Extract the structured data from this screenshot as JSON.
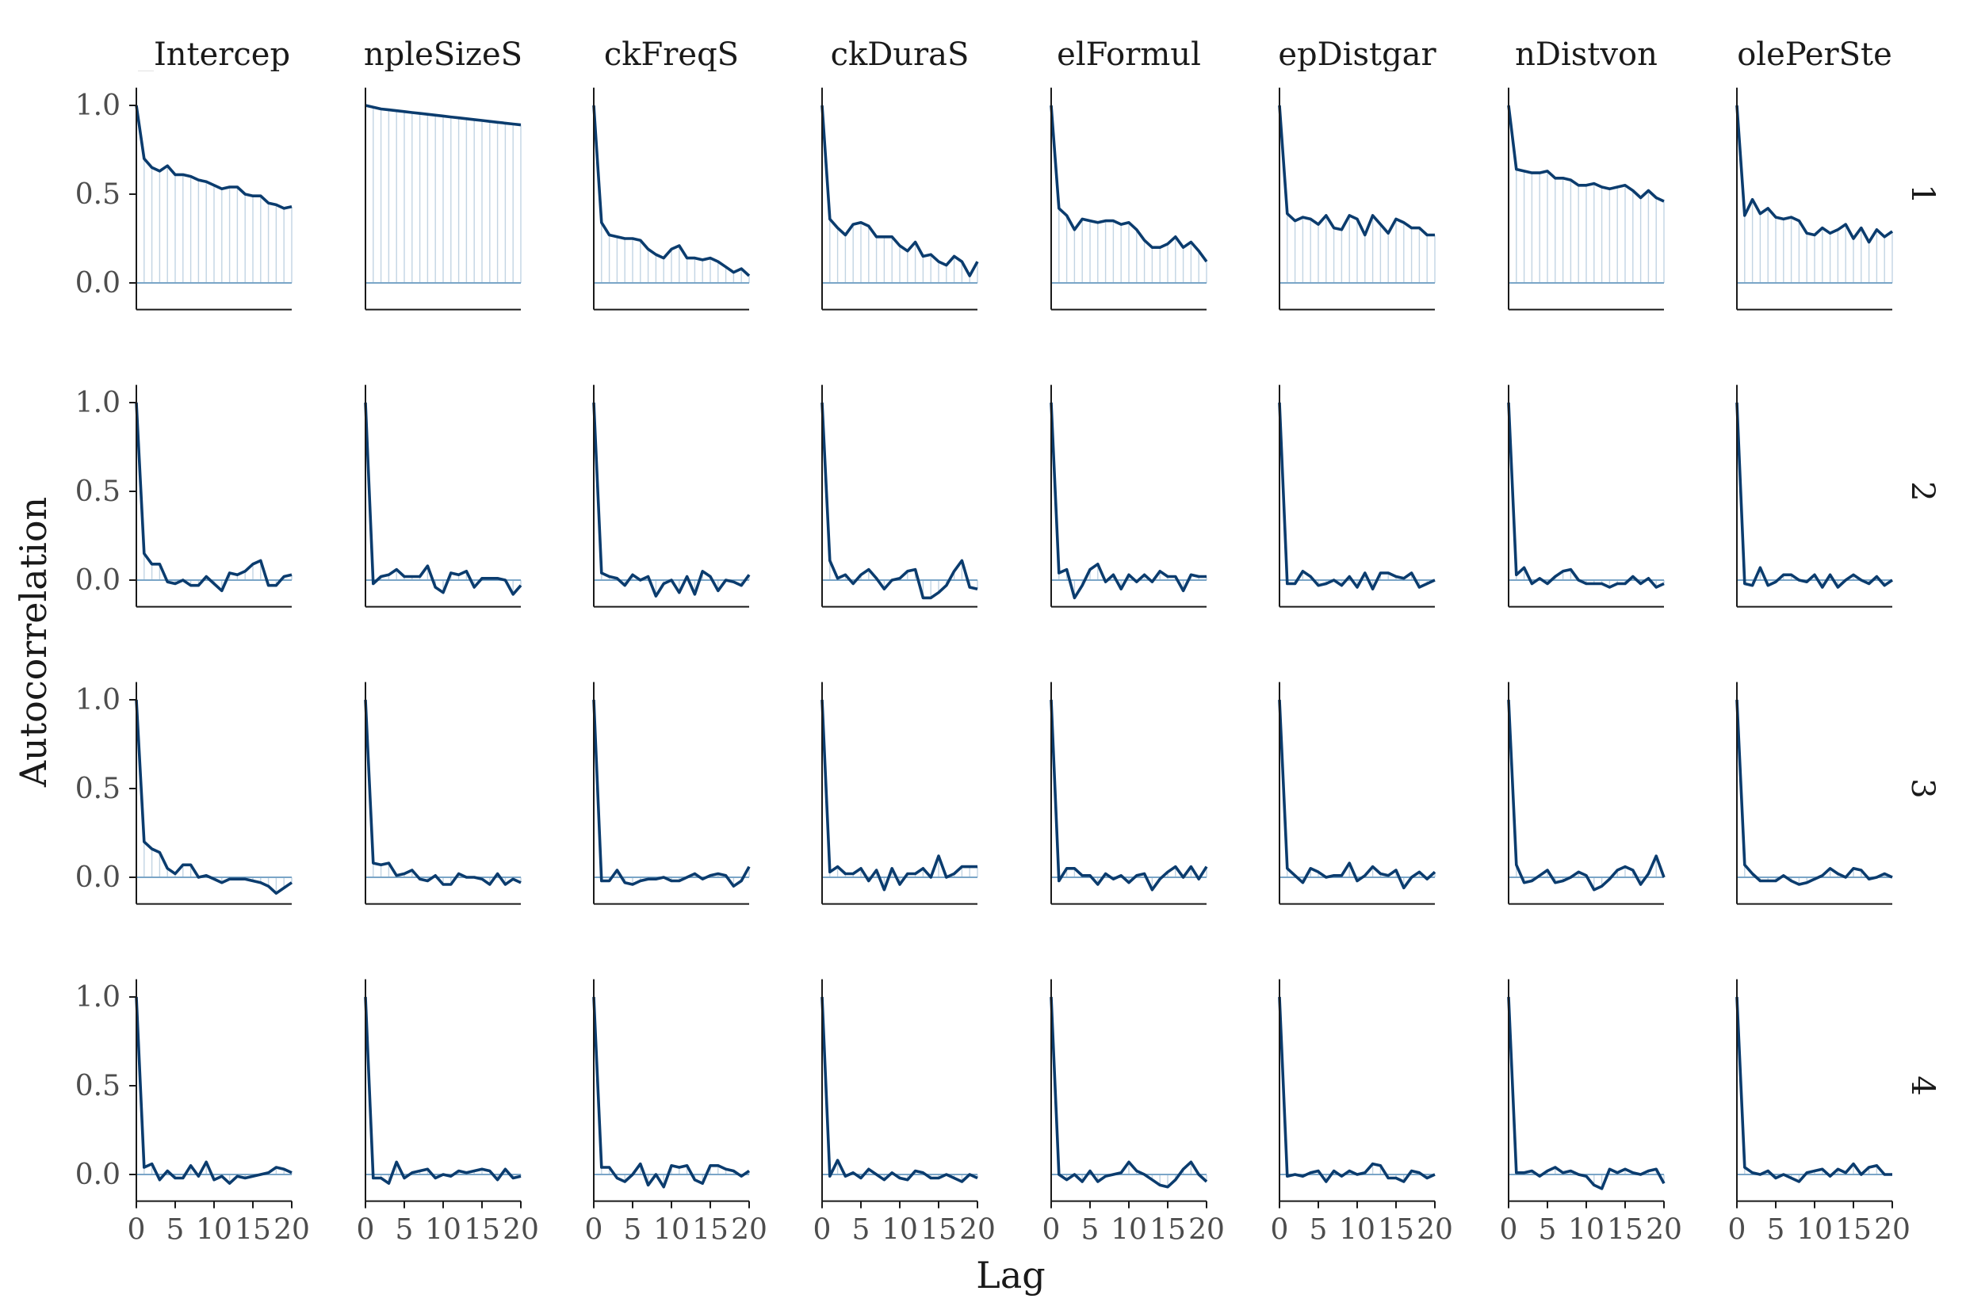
{
  "chart_data": {
    "type": "line",
    "title": "",
    "xlabel": "Lag",
    "ylabel": "Autocorrelation",
    "xlim": [
      0,
      20
    ],
    "ylim": [
      -0.15,
      1.1
    ],
    "x_ticks": [
      0,
      5,
      10,
      15,
      20
    ],
    "x_tick_labels": [
      "0",
      "5",
      "10",
      "15",
      "20"
    ],
    "y_ticks": [
      0.0,
      0.5,
      1.0
    ],
    "y_tick_labels": [
      "0.0",
      "0.5",
      "1.0"
    ],
    "grid": false,
    "colors": {
      "line": "#0b3c6e",
      "stem": "#8fb0cc",
      "zero_line": "#7aa5c7",
      "axis": "#1a1a1a"
    },
    "column_titles": [
      "_Intercep",
      "npleSizeS",
      "ckFreqS",
      "ckDuraS",
      "elFormul",
      "epDistgar",
      "nDistvon",
      "olePerSte"
    ],
    "row_labels": [
      "1",
      "2",
      "3",
      "4"
    ],
    "lags": [
      0,
      1,
      2,
      3,
      4,
      5,
      6,
      7,
      8,
      9,
      10,
      11,
      12,
      13,
      14,
      15,
      16,
      17,
      18,
      19,
      20
    ],
    "panels": [
      [
        {
          "values": [
            1.0,
            0.7,
            0.65,
            0.63,
            0.66,
            0.61,
            0.61,
            0.6,
            0.58,
            0.57,
            0.55,
            0.53,
            0.54,
            0.54,
            0.5,
            0.49,
            0.49,
            0.45,
            0.44,
            0.42,
            0.43
          ]
        },
        {
          "values": [
            1.0,
            0.99,
            0.98,
            0.975,
            0.97,
            0.965,
            0.96,
            0.955,
            0.95,
            0.945,
            0.94,
            0.935,
            0.93,
            0.925,
            0.92,
            0.915,
            0.91,
            0.905,
            0.9,
            0.895,
            0.89
          ]
        },
        {
          "values": [
            1.0,
            0.34,
            0.27,
            0.26,
            0.25,
            0.25,
            0.24,
            0.19,
            0.16,
            0.14,
            0.19,
            0.21,
            0.14,
            0.14,
            0.13,
            0.14,
            0.12,
            0.09,
            0.06,
            0.08,
            0.04
          ]
        },
        {
          "values": [
            1.0,
            0.36,
            0.31,
            0.27,
            0.33,
            0.34,
            0.32,
            0.26,
            0.26,
            0.26,
            0.21,
            0.18,
            0.23,
            0.15,
            0.16,
            0.12,
            0.1,
            0.15,
            0.12,
            0.04,
            0.12
          ]
        },
        {
          "values": [
            1.0,
            0.42,
            0.38,
            0.3,
            0.36,
            0.35,
            0.34,
            0.35,
            0.35,
            0.33,
            0.34,
            0.3,
            0.24,
            0.2,
            0.2,
            0.22,
            0.26,
            0.2,
            0.23,
            0.18,
            0.12
          ]
        },
        {
          "values": [
            1.0,
            0.39,
            0.35,
            0.37,
            0.36,
            0.33,
            0.38,
            0.31,
            0.3,
            0.38,
            0.36,
            0.27,
            0.38,
            0.33,
            0.28,
            0.36,
            0.34,
            0.31,
            0.31,
            0.27,
            0.27
          ]
        },
        {
          "values": [
            1.0,
            0.64,
            0.63,
            0.62,
            0.62,
            0.63,
            0.59,
            0.59,
            0.58,
            0.55,
            0.55,
            0.56,
            0.54,
            0.53,
            0.54,
            0.55,
            0.52,
            0.48,
            0.52,
            0.48,
            0.46
          ]
        },
        {
          "values": [
            1.0,
            0.38,
            0.47,
            0.39,
            0.42,
            0.37,
            0.36,
            0.37,
            0.35,
            0.28,
            0.27,
            0.31,
            0.28,
            0.3,
            0.33,
            0.25,
            0.31,
            0.23,
            0.3,
            0.26,
            0.29
          ]
        }
      ],
      [
        {
          "values": [
            1.0,
            0.15,
            0.09,
            0.09,
            -0.01,
            -0.02,
            0.0,
            -0.03,
            -0.03,
            0.02,
            -0.02,
            -0.06,
            0.04,
            0.03,
            0.05,
            0.09,
            0.11,
            -0.03,
            -0.03,
            0.02,
            0.03
          ]
        },
        {
          "values": [
            1.0,
            -0.02,
            0.02,
            0.03,
            0.06,
            0.02,
            0.02,
            0.02,
            0.08,
            -0.04,
            -0.07,
            0.04,
            0.03,
            0.05,
            -0.04,
            0.01,
            0.01,
            0.01,
            0.0,
            -0.08,
            -0.03
          ]
        },
        {
          "values": [
            1.0,
            0.04,
            0.02,
            0.01,
            -0.03,
            0.03,
            0.0,
            0.02,
            -0.09,
            -0.02,
            0.0,
            -0.07,
            0.02,
            -0.08,
            0.05,
            0.02,
            -0.06,
            0.0,
            -0.01,
            -0.03,
            0.03
          ]
        },
        {
          "values": [
            1.0,
            0.11,
            0.01,
            0.03,
            -0.02,
            0.03,
            0.06,
            0.01,
            -0.05,
            0.0,
            0.01,
            0.05,
            0.06,
            -0.1,
            -0.1,
            -0.07,
            -0.03,
            0.05,
            0.11,
            -0.04,
            -0.05
          ]
        },
        {
          "values": [
            1.0,
            0.04,
            0.06,
            -0.1,
            -0.03,
            0.06,
            0.09,
            -0.01,
            0.03,
            -0.05,
            0.03,
            -0.01,
            0.03,
            -0.01,
            0.05,
            0.02,
            0.02,
            -0.06,
            0.03,
            0.02,
            0.02
          ]
        },
        {
          "values": [
            1.0,
            -0.02,
            -0.02,
            0.05,
            0.02,
            -0.03,
            -0.02,
            0.0,
            -0.03,
            0.02,
            -0.04,
            0.04,
            -0.05,
            0.04,
            0.04,
            0.02,
            0.01,
            0.04,
            -0.04,
            -0.02,
            0.0
          ]
        },
        {
          "values": [
            1.0,
            0.03,
            0.07,
            -0.02,
            0.01,
            -0.02,
            0.02,
            0.05,
            0.06,
            0.0,
            -0.02,
            -0.02,
            -0.02,
            -0.04,
            -0.02,
            -0.02,
            0.02,
            -0.02,
            0.01,
            -0.04,
            -0.02
          ]
        },
        {
          "values": [
            1.0,
            -0.02,
            -0.03,
            0.07,
            -0.03,
            -0.01,
            0.03,
            0.03,
            0.0,
            -0.01,
            0.03,
            -0.04,
            0.03,
            -0.04,
            0.0,
            0.03,
            0.0,
            -0.02,
            0.02,
            -0.03,
            0.0
          ]
        }
      ],
      [
        {
          "values": [
            1.0,
            0.2,
            0.16,
            0.14,
            0.05,
            0.02,
            0.07,
            0.07,
            0.0,
            0.01,
            -0.01,
            -0.03,
            -0.01,
            -0.01,
            -0.01,
            -0.02,
            -0.03,
            -0.05,
            -0.09,
            -0.06,
            -0.03
          ]
        },
        {
          "values": [
            1.0,
            0.08,
            0.07,
            0.08,
            0.01,
            0.02,
            0.04,
            -0.01,
            -0.02,
            0.01,
            -0.04,
            -0.04,
            0.02,
            0.0,
            0.0,
            -0.01,
            -0.04,
            0.02,
            -0.04,
            -0.01,
            -0.03
          ]
        },
        {
          "values": [
            1.0,
            -0.02,
            -0.02,
            0.04,
            -0.03,
            -0.04,
            -0.02,
            -0.01,
            -0.01,
            0.0,
            -0.02,
            -0.02,
            0.0,
            0.02,
            -0.01,
            0.01,
            0.02,
            0.01,
            -0.05,
            -0.02,
            0.06
          ]
        },
        {
          "values": [
            1.0,
            0.03,
            0.06,
            0.02,
            0.02,
            0.05,
            -0.02,
            0.04,
            -0.07,
            0.05,
            -0.04,
            0.02,
            0.02,
            0.05,
            0.0,
            0.12,
            0.0,
            0.02,
            0.06,
            0.06,
            0.06
          ]
        },
        {
          "values": [
            1.0,
            -0.02,
            0.05,
            0.05,
            0.01,
            0.01,
            -0.04,
            0.02,
            -0.01,
            0.01,
            -0.03,
            0.01,
            0.02,
            -0.07,
            -0.01,
            0.03,
            0.06,
            0.0,
            0.06,
            -0.01,
            0.06
          ]
        },
        {
          "values": [
            1.0,
            0.05,
            0.01,
            -0.03,
            0.05,
            0.03,
            0.0,
            0.01,
            0.01,
            0.08,
            -0.02,
            0.01,
            0.06,
            0.02,
            0.01,
            0.04,
            -0.06,
            0.0,
            0.03,
            -0.01,
            0.03
          ]
        },
        {
          "values": [
            1.0,
            0.07,
            -0.03,
            -0.02,
            0.01,
            0.04,
            -0.03,
            -0.02,
            0.0,
            0.03,
            0.01,
            -0.07,
            -0.05,
            -0.01,
            0.04,
            0.06,
            0.04,
            -0.04,
            0.02,
            0.12,
            0.0
          ]
        },
        {
          "values": [
            1.0,
            0.07,
            0.02,
            -0.02,
            -0.02,
            -0.02,
            0.01,
            -0.02,
            -0.04,
            -0.03,
            -0.01,
            0.01,
            0.05,
            0.02,
            0.0,
            0.05,
            0.04,
            -0.01,
            0.0,
            0.02,
            0.0
          ]
        }
      ],
      [
        {
          "values": [
            1.0,
            0.04,
            0.06,
            -0.03,
            0.02,
            -0.02,
            -0.02,
            0.05,
            -0.01,
            0.07,
            -0.03,
            -0.01,
            -0.05,
            -0.01,
            -0.02,
            -0.01,
            0.0,
            0.01,
            0.04,
            0.03,
            0.01
          ]
        },
        {
          "values": [
            1.0,
            -0.02,
            -0.02,
            -0.05,
            0.07,
            -0.02,
            0.01,
            0.02,
            0.03,
            -0.02,
            0.0,
            -0.01,
            0.02,
            0.01,
            0.02,
            0.03,
            0.02,
            -0.03,
            0.03,
            -0.02,
            -0.01
          ]
        },
        {
          "values": [
            1.0,
            0.04,
            0.04,
            -0.02,
            -0.04,
            0.0,
            0.06,
            -0.06,
            0.0,
            -0.07,
            0.05,
            0.04,
            0.05,
            -0.03,
            -0.05,
            0.05,
            0.05,
            0.03,
            0.02,
            -0.01,
            0.02
          ]
        },
        {
          "values": [
            1.0,
            -0.01,
            0.08,
            -0.01,
            0.01,
            -0.02,
            0.03,
            0.0,
            -0.03,
            0.01,
            -0.02,
            -0.03,
            0.02,
            0.01,
            -0.02,
            -0.02,
            0.0,
            -0.02,
            -0.04,
            0.0,
            -0.02
          ]
        },
        {
          "values": [
            1.0,
            0.0,
            -0.03,
            0.0,
            -0.04,
            0.02,
            -0.04,
            -0.01,
            0.0,
            0.01,
            0.07,
            0.02,
            0.0,
            -0.03,
            -0.06,
            -0.07,
            -0.03,
            0.03,
            0.07,
            0.0,
            -0.04
          ]
        },
        {
          "values": [
            1.0,
            -0.01,
            0.0,
            -0.01,
            0.01,
            0.02,
            -0.04,
            0.02,
            -0.01,
            0.02,
            0.0,
            0.01,
            0.06,
            0.05,
            -0.02,
            -0.02,
            -0.04,
            0.02,
            0.01,
            -0.02,
            0.0
          ]
        },
        {
          "values": [
            1.0,
            0.01,
            0.01,
            0.02,
            -0.01,
            0.02,
            0.04,
            0.01,
            0.02,
            0.0,
            -0.01,
            -0.06,
            -0.08,
            0.03,
            0.01,
            0.03,
            0.01,
            0.0,
            0.02,
            0.03,
            -0.05
          ]
        },
        {
          "values": [
            1.0,
            0.04,
            0.01,
            0.0,
            0.02,
            -0.02,
            0.0,
            -0.02,
            -0.04,
            0.01,
            0.02,
            0.03,
            -0.01,
            0.03,
            0.01,
            0.06,
            0.0,
            0.04,
            0.05,
            0.0,
            0.0
          ]
        }
      ]
    ]
  }
}
